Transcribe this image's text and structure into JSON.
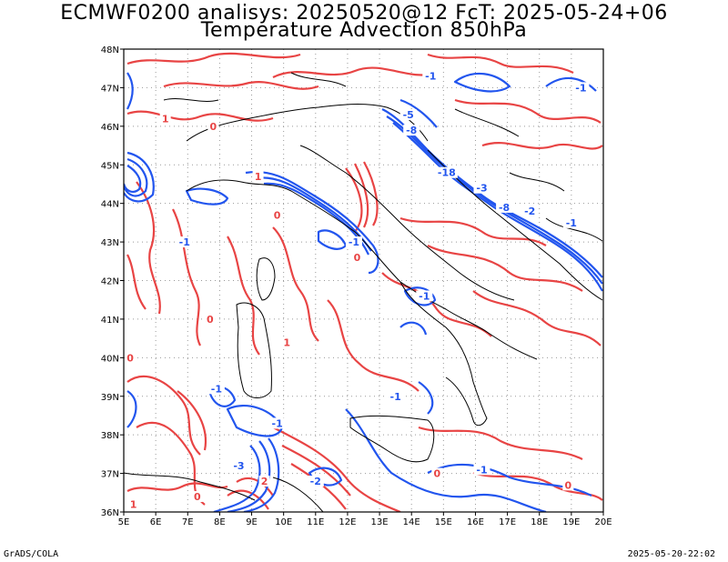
{
  "header": {
    "title_line1": "ECMWF0200 analisys: 20250520@12 FcT: 2025-05-24+06",
    "title_line2": "Temperature Advection 850hPa"
  },
  "footer": {
    "left": "GrADS/COLA",
    "right": "2025-05-20-22:02"
  },
  "map": {
    "lon_labels": [
      "5E",
      "6E",
      "7E",
      "8E",
      "9E",
      "10E",
      "11E",
      "12E",
      "13E",
      "14E",
      "15E",
      "16E",
      "17E",
      "18E",
      "19E",
      "20E"
    ],
    "lat_labels": [
      "48N",
      "47N",
      "46N",
      "45N",
      "44N",
      "43N",
      "42N",
      "41N",
      "40N",
      "39N",
      "38N",
      "37N",
      "36N"
    ],
    "contour_labels": [
      {
        "text": "-1",
        "lon": 14.6,
        "lat": 47.3,
        "color": "blue"
      },
      {
        "text": "-1",
        "lon": 19.3,
        "lat": 47.0,
        "color": "blue"
      },
      {
        "text": "1",
        "lon": 6.3,
        "lat": 46.2,
        "color": "red"
      },
      {
        "text": "0",
        "lon": 7.8,
        "lat": 46.0,
        "color": "red"
      },
      {
        "text": "-5",
        "lon": 13.9,
        "lat": 46.3,
        "color": "blue"
      },
      {
        "text": "-8",
        "lon": 14.0,
        "lat": 45.9,
        "color": "blue"
      },
      {
        "text": "-18",
        "lon": 15.1,
        "lat": 44.8,
        "color": "blue"
      },
      {
        "text": "-3",
        "lon": 16.2,
        "lat": 44.4,
        "color": "blue"
      },
      {
        "text": "-8",
        "lon": 16.9,
        "lat": 43.9,
        "color": "blue"
      },
      {
        "text": "-2",
        "lon": 17.7,
        "lat": 43.8,
        "color": "blue"
      },
      {
        "text": "-1",
        "lon": 19.0,
        "lat": 43.5,
        "color": "blue"
      },
      {
        "text": "1",
        "lon": 9.2,
        "lat": 44.7,
        "color": "red"
      },
      {
        "text": "0",
        "lon": 9.8,
        "lat": 43.7,
        "color": "red"
      },
      {
        "text": "-1",
        "lon": 6.9,
        "lat": 43.0,
        "color": "blue"
      },
      {
        "text": "-1",
        "lon": 12.2,
        "lat": 43.0,
        "color": "blue"
      },
      {
        "text": "0",
        "lon": 12.3,
        "lat": 42.6,
        "color": "red"
      },
      {
        "text": "-1",
        "lon": 14.4,
        "lat": 41.6,
        "color": "blue"
      },
      {
        "text": "0",
        "lon": 7.7,
        "lat": 41.0,
        "color": "red"
      },
      {
        "text": "1",
        "lon": 10.1,
        "lat": 40.4,
        "color": "red"
      },
      {
        "text": "0",
        "lon": 5.2,
        "lat": 40.0,
        "color": "red"
      },
      {
        "text": "-1",
        "lon": 13.5,
        "lat": 39.0,
        "color": "blue"
      },
      {
        "text": "-1",
        "lon": 7.9,
        "lat": 39.2,
        "color": "blue"
      },
      {
        "text": "-1",
        "lon": 9.8,
        "lat": 38.3,
        "color": "blue"
      },
      {
        "text": "-3",
        "lon": 8.6,
        "lat": 37.2,
        "color": "blue"
      },
      {
        "text": "2",
        "lon": 9.4,
        "lat": 36.8,
        "color": "red"
      },
      {
        "text": "-2",
        "lon": 11.0,
        "lat": 36.8,
        "color": "blue"
      },
      {
        "text": "0",
        "lon": 14.8,
        "lat": 37.0,
        "color": "red"
      },
      {
        "text": "-1",
        "lon": 16.2,
        "lat": 37.1,
        "color": "blue"
      },
      {
        "text": "0",
        "lon": 18.9,
        "lat": 36.7,
        "color": "red"
      },
      {
        "text": "1",
        "lon": 5.3,
        "lat": 36.2,
        "color": "red"
      },
      {
        "text": "0",
        "lon": 7.3,
        "lat": 36.4,
        "color": "red"
      }
    ],
    "colors": {
      "warm": "#e84444",
      "cold": "#2255ee",
      "coast": "#000000",
      "grid": "#999999"
    }
  }
}
